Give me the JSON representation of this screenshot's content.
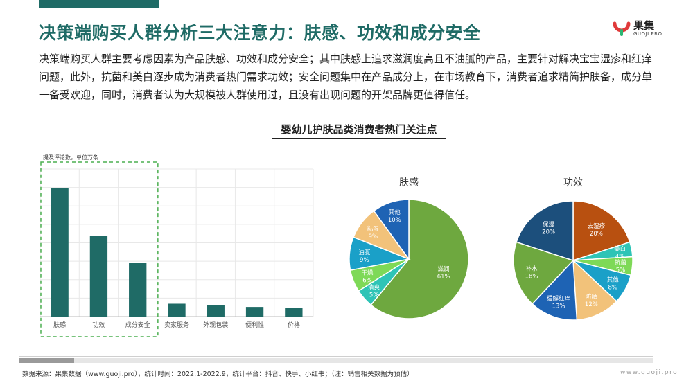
{
  "header": {
    "title": "决策端购买人群分析三大注意力：肤感、功效和成分安全",
    "logo_name": "果集",
    "logo_sub": "GUOJI.PRO"
  },
  "description": "决策端购买人群主要考虑因素为产品肤感、功效和成分安全；其中肤感上追求滋润度高且不油腻的产品，主要针对解决宝宝湿疹和红痒问题，此外，抗菌和美白逐步成为消费者热门需求功效；安全问题集中在产品成分上，在市场教育下，消费者追求精简护肤备，成分单一备受欢迎，同时，消费者认为大规模被人群使用过，且没有出现问题的开架品牌更值得信任。",
  "chart_title": "婴幼儿护肤品类消费者热门关注点",
  "footer": {
    "source": "数据来源：果集数据（www.guoji.pro），统计时间：2022.1-2022.9，统计平台：抖音、快手、小红书；（注：销售相关数据为预估）",
    "site": "www.guoji.pro",
    "progress_fraction": 0.086
  },
  "colors": {
    "brand": "#1f6b66",
    "bar": "#1f6b66",
    "highlight_border": "#4caf50"
  },
  "chart_data": [
    {
      "type": "bar",
      "title": "",
      "ylabel": "提及评论数，单位万条",
      "categories": [
        "肤感",
        "功效",
        "成分安全",
        "卖家服务",
        "外观包装",
        "便利性",
        "价格"
      ],
      "values": [
        100,
        63,
        42,
        10,
        9,
        7.5,
        7
      ],
      "ylim": [
        0,
        115
      ],
      "highlighted_categories": [
        "肤感",
        "功效",
        "成分安全"
      ],
      "grid": true
    },
    {
      "type": "pie",
      "title": "肤感",
      "slices": [
        {
          "label": "滋润",
          "value": 61,
          "color": "#6ea83f"
        },
        {
          "label": "清爽",
          "value": 5,
          "color": "#2ec4b6"
        },
        {
          "label": "干燥",
          "value": 6,
          "color": "#7ed957"
        },
        {
          "label": "油腻",
          "value": 9,
          "color": "#1aa0c8"
        },
        {
          "label": "粘湿",
          "value": 9,
          "color": "#f2c27a"
        },
        {
          "label": "其他",
          "value": 10,
          "color": "#1e63b4"
        }
      ]
    },
    {
      "type": "pie",
      "title": "功效",
      "slices": [
        {
          "label": "去湿疹",
          "value": 20,
          "color": "#b85010"
        },
        {
          "label": "美白",
          "value": 4,
          "color": "#2ec4b6"
        },
        {
          "label": "抗菌",
          "value": 5,
          "color": "#7ed957"
        },
        {
          "label": "其他",
          "value": 8,
          "color": "#1aa0c8"
        },
        {
          "label": "防晒",
          "value": 12,
          "color": "#f2c27a"
        },
        {
          "label": "缓解红痒",
          "value": 13,
          "color": "#1e63b4"
        },
        {
          "label": "补水",
          "value": 18,
          "color": "#6ea83f"
        },
        {
          "label": "保湿",
          "value": 20,
          "color": "#1c4f7c"
        }
      ]
    }
  ]
}
